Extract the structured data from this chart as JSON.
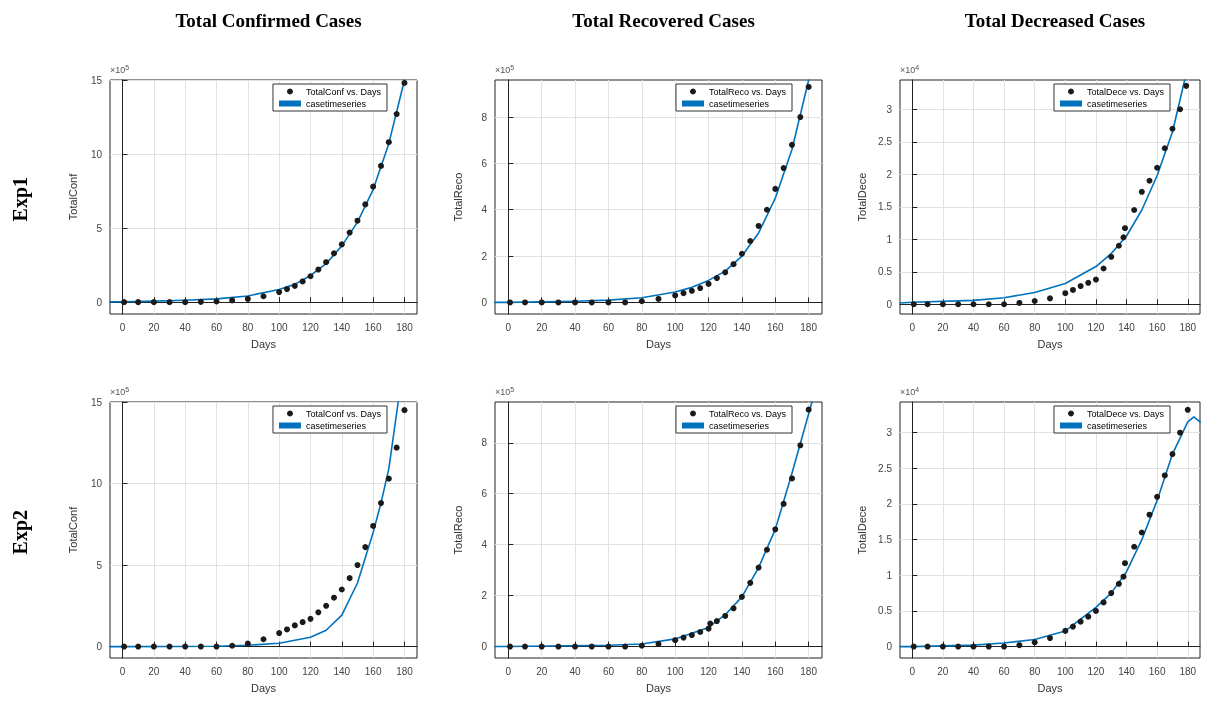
{
  "chart_data": [
    {
      "type": "scatter",
      "title": "Total Confirmed Cases",
      "xlabel": "Days",
      "ylabel": "TotalConf",
      "annotations": [
        "×10$^{5}$",
        "Exp1"
      ],
      "xlim": [
        -8,
        188
      ],
      "xticks": [
        0,
        20,
        40,
        60,
        80,
        100,
        120,
        140,
        160,
        180
      ],
      "ylim": [
        -0.8,
        15
      ],
      "yticks": [
        0,
        5,
        10,
        15
      ],
      "grid": true,
      "legend": "top right",
      "series": [
        {
          "name": "TotalConf vs. Days",
          "type": "scatter",
          "marker": "circle",
          "color": "#1a1a1a",
          "x": [
            1,
            10,
            20,
            30,
            40,
            50,
            60,
            70,
            80,
            90,
            100,
            105,
            110,
            115,
            120,
            125,
            130,
            135,
            140,
            145,
            150,
            155,
            160,
            165,
            170,
            175,
            180
          ],
          "values": [
            0,
            0,
            0,
            0,
            0,
            0.02,
            0.05,
            0.12,
            0.22,
            0.4,
            0.68,
            0.88,
            1.1,
            1.4,
            1.75,
            2.2,
            2.7,
            3.3,
            3.9,
            4.7,
            5.5,
            6.6,
            7.8,
            9.2,
            10.8,
            12.7,
            14.8
          ]
        },
        {
          "name": "casetimeseries",
          "type": "line",
          "marker": "none",
          "line_style": "solid",
          "color": "#0072bd",
          "x": [
            -8,
            0,
            20,
            40,
            60,
            80,
            100,
            110,
            120,
            130,
            140,
            150,
            160,
            170,
            180
          ],
          "values": [
            0.02,
            0.03,
            0.07,
            0.13,
            0.22,
            0.42,
            0.85,
            1.2,
            1.8,
            2.6,
            3.8,
            5.4,
            7.6,
            10.7,
            15
          ]
        }
      ]
    },
    {
      "type": "scatter",
      "title": "Total Recovered Cases",
      "xlabel": "Days",
      "ylabel": "TotalReco",
      "annotations": [
        "×10$^{5}$"
      ],
      "xlim": [
        -8,
        188
      ],
      "xticks": [
        0,
        20,
        40,
        60,
        80,
        100,
        120,
        140,
        160,
        180
      ],
      "ylim": [
        -0.5,
        9.6
      ],
      "yticks": [
        0,
        2,
        4,
        6,
        8
      ],
      "grid": true,
      "legend": "top right",
      "series": [
        {
          "name": "TotalReco vs. Days",
          "type": "scatter",
          "marker": "circle",
          "color": "#1a1a1a",
          "x": [
            1,
            10,
            20,
            30,
            40,
            50,
            60,
            70,
            80,
            90,
            100,
            105,
            110,
            115,
            120,
            125,
            130,
            135,
            140,
            145,
            150,
            155,
            160,
            165,
            170,
            175,
            180
          ],
          "values": [
            0,
            0,
            0,
            0,
            0,
            0,
            0,
            0,
            0.05,
            0.15,
            0.3,
            0.4,
            0.5,
            0.62,
            0.8,
            1.05,
            1.3,
            1.65,
            2.1,
            2.65,
            3.3,
            4.0,
            4.9,
            5.8,
            6.8,
            8.0,
            9.3
          ]
        },
        {
          "name": "casetimeseries",
          "type": "line",
          "marker": "none",
          "line_style": "solid",
          "color": "#0072bd",
          "x": [
            -8,
            0,
            40,
            60,
            80,
            100,
            110,
            120,
            130,
            140,
            150,
            160,
            170,
            180
          ],
          "values": [
            0,
            0,
            0.05,
            0.1,
            0.2,
            0.45,
            0.65,
            0.95,
            1.35,
            2.0,
            3.0,
            4.5,
            6.6,
            9.6
          ]
        }
      ]
    },
    {
      "type": "scatter",
      "title": "Total Decreased Cases",
      "xlabel": "Days",
      "ylabel": "TotalDece",
      "annotations": [
        "×10$^{4}$"
      ],
      "xlim": [
        -8,
        188
      ],
      "xticks": [
        0,
        20,
        40,
        60,
        80,
        100,
        120,
        140,
        160,
        180
      ],
      "ylim": [
        -0.15,
        3.45
      ],
      "yticks": [
        0,
        0.5,
        1,
        1.5,
        2,
        2.5,
        3
      ],
      "grid": true,
      "legend": "top right",
      "series": [
        {
          "name": "TotalDece vs. Days",
          "type": "scatter",
          "marker": "circle",
          "color": "#1a1a1a",
          "x": [
            1,
            10,
            20,
            30,
            40,
            50,
            60,
            70,
            80,
            90,
            100,
            105,
            110,
            115,
            120,
            125,
            130,
            135,
            138,
            139,
            145,
            150,
            155,
            160,
            165,
            170,
            175,
            179
          ],
          "values": [
            0,
            0,
            0,
            0,
            0,
            0,
            0,
            0.02,
            0.05,
            0.09,
            0.17,
            0.22,
            0.28,
            0.33,
            0.38,
            0.55,
            0.73,
            0.9,
            1.03,
            1.17,
            1.45,
            1.73,
            1.9,
            2.1,
            2.4,
            2.7,
            3.0,
            3.36
          ]
        },
        {
          "name": "casetimeseries",
          "type": "line",
          "marker": "none",
          "line_style": "solid",
          "color": "#0072bd",
          "x": [
            -8,
            0,
            40,
            60,
            80,
            100,
            120,
            130,
            140,
            150,
            160,
            170,
            178
          ],
          "values": [
            0.02,
            0.03,
            0.06,
            0.1,
            0.18,
            0.32,
            0.58,
            0.78,
            1.05,
            1.45,
            1.98,
            2.65,
            3.45
          ]
        }
      ]
    },
    {
      "type": "scatter",
      "xlabel": "Days",
      "ylabel": "TotalConf",
      "annotations": [
        "×10$^{5}$",
        "Exp2"
      ],
      "xlim": [
        -8,
        188
      ],
      "xticks": [
        0,
        20,
        40,
        60,
        80,
        100,
        120,
        140,
        160,
        180
      ],
      "ylim": [
        -0.7,
        15
      ],
      "yticks": [
        0,
        5,
        10,
        15
      ],
      "grid": true,
      "legend": "top right",
      "series": [
        {
          "name": "TotalConf vs. Days",
          "type": "scatter",
          "marker": "circle",
          "color": "#1a1a1a",
          "x": [
            1,
            10,
            20,
            30,
            40,
            50,
            60,
            70,
            80,
            90,
            100,
            105,
            110,
            115,
            120,
            125,
            130,
            135,
            140,
            145,
            150,
            155,
            160,
            165,
            170,
            175,
            180
          ],
          "values": [
            0,
            0,
            0,
            0,
            0,
            0,
            0,
            0.05,
            0.18,
            0.45,
            0.83,
            1.05,
            1.3,
            1.5,
            1.7,
            2.1,
            2.5,
            3.0,
            3.5,
            4.2,
            5.0,
            6.1,
            7.4,
            8.8,
            10.3,
            12.2,
            14.5
          ]
        },
        {
          "name": "casetimeseries",
          "type": "line",
          "marker": "none",
          "line_style": "solid",
          "color": "#0072bd",
          "x": [
            -8,
            0,
            60,
            80,
            100,
            120,
            130,
            140,
            150,
            160,
            165,
            170,
            176
          ],
          "values": [
            0,
            0,
            0.02,
            0.08,
            0.2,
            0.57,
            1.0,
            1.93,
            3.9,
            7.0,
            8.8,
            10.9,
            15
          ]
        }
      ]
    },
    {
      "type": "scatter",
      "xlabel": "Days",
      "ylabel": "TotalReco",
      "annotations": [
        "×10$^{5}$"
      ],
      "xlim": [
        -8,
        188
      ],
      "xticks": [
        0,
        20,
        40,
        60,
        80,
        100,
        120,
        140,
        160,
        180
      ],
      "ylim": [
        -0.45,
        9.6
      ],
      "yticks": [
        0,
        2,
        4,
        6,
        8
      ],
      "grid": true,
      "legend": "top right",
      "series": [
        {
          "name": "TotalReco vs. Days",
          "type": "scatter",
          "marker": "circle",
          "color": "#1a1a1a",
          "x": [
            1,
            10,
            20,
            30,
            40,
            50,
            60,
            70,
            80,
            90,
            100,
            105,
            110,
            115,
            120,
            121,
            125,
            130,
            135,
            140,
            145,
            150,
            155,
            160,
            165,
            170,
            175,
            180
          ],
          "values": [
            0,
            0,
            0,
            0,
            0,
            0,
            0,
            0,
            0.03,
            0.1,
            0.25,
            0.35,
            0.45,
            0.57,
            0.7,
            0.9,
            1.0,
            1.2,
            1.5,
            1.95,
            2.5,
            3.1,
            3.8,
            4.6,
            5.6,
            6.6,
            7.9,
            9.3
          ]
        },
        {
          "name": "casetimeseries",
          "type": "line",
          "marker": "none",
          "line_style": "solid",
          "color": "#0072bd",
          "x": [
            -8,
            0,
            60,
            80,
            100,
            120,
            130,
            140,
            150,
            160,
            170,
            182
          ],
          "values": [
            0,
            0,
            0.05,
            0.1,
            0.3,
            0.75,
            1.25,
            1.95,
            3.1,
            4.6,
            6.8,
            9.6
          ]
        }
      ]
    },
    {
      "type": "scatter",
      "xlabel": "Days",
      "ylabel": "TotalDece",
      "annotations": [
        "×10$^{4}$"
      ],
      "xlim": [
        -8,
        188
      ],
      "xticks": [
        0,
        20,
        40,
        60,
        80,
        100,
        120,
        140,
        160,
        180
      ],
      "ylim": [
        -0.16,
        3.43
      ],
      "yticks": [
        0,
        0.5,
        1,
        1.5,
        2,
        2.5,
        3
      ],
      "grid": true,
      "legend": "top right",
      "series": [
        {
          "name": "TotalDece vs. Days",
          "type": "scatter",
          "marker": "circle",
          "color": "#1a1a1a",
          "x": [
            1,
            10,
            20,
            30,
            40,
            50,
            60,
            70,
            80,
            90,
            100,
            105,
            110,
            115,
            120,
            125,
            130,
            135,
            138,
            139,
            145,
            150,
            155,
            160,
            165,
            170,
            175,
            180
          ],
          "values": [
            0,
            0,
            0,
            0,
            0,
            0,
            0,
            0.02,
            0.06,
            0.12,
            0.22,
            0.28,
            0.35,
            0.42,
            0.5,
            0.62,
            0.75,
            0.88,
            0.98,
            1.17,
            1.4,
            1.6,
            1.85,
            2.1,
            2.4,
            2.7,
            3.0,
            3.32
          ]
        },
        {
          "name": "casetimeseries",
          "type": "line",
          "marker": "none",
          "line_style": "solid",
          "color": "#0072bd",
          "x": [
            -8,
            0,
            40,
            60,
            80,
            100,
            120,
            130,
            140,
            150,
            160,
            170,
            180,
            184,
            188
          ],
          "values": [
            0,
            0,
            0.02,
            0.05,
            0.1,
            0.22,
            0.55,
            0.75,
            1.05,
            1.5,
            2.05,
            2.7,
            3.15,
            3.22,
            3.15
          ]
        }
      ]
    }
  ]
}
